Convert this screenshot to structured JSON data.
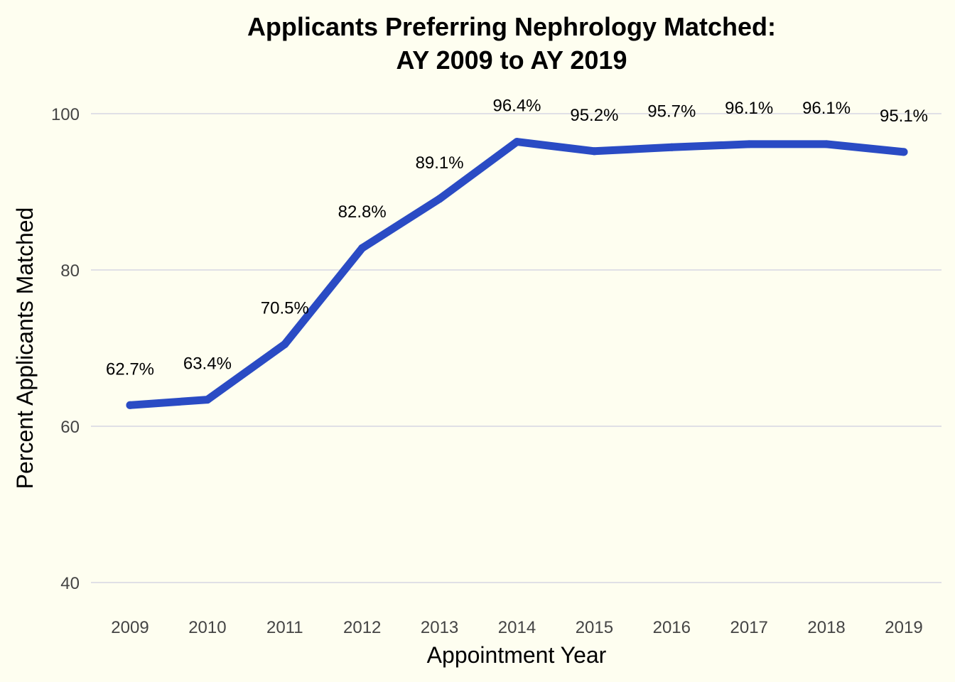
{
  "chart_data": {
    "type": "line",
    "title_lines": [
      "Applicants Preferring Nephrology Matched:",
      "AY 2009 to AY 2019"
    ],
    "xlabel": "Appointment Year",
    "ylabel": "Percent Applicants Matched",
    "categories": [
      "2009",
      "2010",
      "2011",
      "2012",
      "2013",
      "2014",
      "2015",
      "2016",
      "2017",
      "2018",
      "2019"
    ],
    "series": [
      {
        "values": [
          62.7,
          63.4,
          70.5,
          82.8,
          89.1,
          96.4,
          95.2,
          95.7,
          96.1,
          96.1,
          95.1
        ],
        "labels": [
          "62.7%",
          "63.4%",
          "70.5%",
          "82.8%",
          "89.1%",
          "96.4%",
          "95.2%",
          "95.7%",
          "96.1%",
          "96.1%",
          "95.1%"
        ],
        "color": "#2a4bc4"
      }
    ],
    "ylim": [
      40,
      100
    ],
    "yticks": [
      40,
      60,
      80,
      100
    ],
    "ytick_labels": [
      "40",
      "60",
      "80",
      "100"
    ],
    "grid": true,
    "legend": false
  },
  "colors": {
    "background": "#fefef0",
    "line": "#2a4bc4",
    "grid": "#e0e0e6"
  }
}
